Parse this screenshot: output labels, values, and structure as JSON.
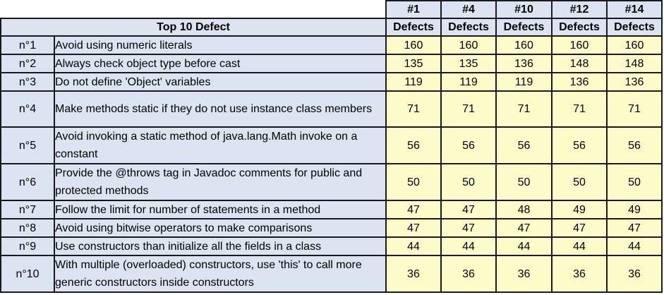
{
  "table": {
    "release_headers": [
      "#1",
      "#4",
      "#10",
      "#12",
      "#14"
    ],
    "title": "Top 10 Defect",
    "column_label": "Defects",
    "rows": [
      {
        "rank": "n°1",
        "description": "Avoid using numeric literals",
        "values": [
          "160",
          "160",
          "160",
          "160",
          "160"
        ]
      },
      {
        "rank": "n°2",
        "description": "Always check object type before cast",
        "values": [
          "135",
          "135",
          "136",
          "148",
          "148"
        ]
      },
      {
        "rank": "n°3",
        "description": "Do not define 'Object' variables",
        "values": [
          "119",
          "119",
          "119",
          "136",
          "136"
        ]
      },
      {
        "rank": "n°4",
        "description": "Make methods static if they do not use instance class members",
        "values": [
          "71",
          "71",
          "71",
          "71",
          "71"
        ]
      },
      {
        "rank": "n°5",
        "description": "Avoid invoking a static method of java.lang.Math invoke on a constant",
        "values": [
          "56",
          "56",
          "56",
          "56",
          "56"
        ]
      },
      {
        "rank": "n°6",
        "description": "Provide the @throws tag in Javadoc comments for public and protected methods",
        "values": [
          "50",
          "50",
          "50",
          "50",
          "50"
        ]
      },
      {
        "rank": "n°7",
        "description": "Follow the limit for number of statements in a method",
        "values": [
          "47",
          "47",
          "48",
          "49",
          "49"
        ]
      },
      {
        "rank": "n°8",
        "description": "Avoid using bitwise operators to make comparisons",
        "values": [
          "47",
          "47",
          "47",
          "47",
          "47"
        ]
      },
      {
        "rank": "n°9",
        "description": "Use constructors than initialize all the fields in a class",
        "values": [
          "44",
          "44",
          "44",
          "44",
          "44"
        ]
      },
      {
        "rank": "n°10",
        "description": "With multiple (overloaded) constructors, use 'this' to call more generic constructors inside constructors",
        "values": [
          "36",
          "36",
          "36",
          "36",
          "36"
        ]
      }
    ]
  },
  "colors": {
    "header_fill": "#dbe4f0",
    "value_fill": "#fdfbc8",
    "border": "#1a1a1a"
  }
}
